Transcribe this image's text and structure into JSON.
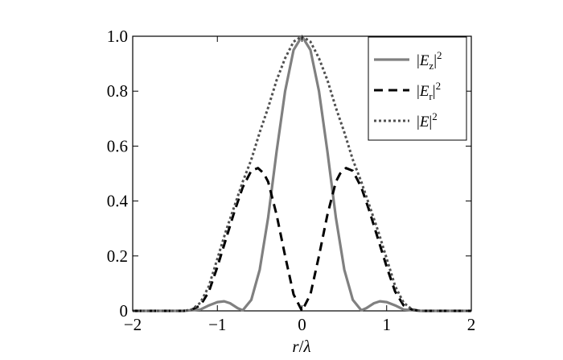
{
  "chart_data": {
    "type": "line",
    "title": "",
    "xlabel_parts": {
      "var": "r",
      "sep": "/",
      "sym": "λ"
    },
    "ylabel": "",
    "xlim": [
      -2,
      2
    ],
    "ylim": [
      0,
      1
    ],
    "x_ticks": [
      -2,
      -1,
      0,
      1,
      2
    ],
    "x_tick_labels": [
      "−2",
      "−1",
      "0",
      "1",
      "2"
    ],
    "y_ticks": [
      0,
      0.2,
      0.4,
      0.6,
      0.8,
      1.0
    ],
    "y_tick_labels": [
      "0",
      "0.2",
      "0.4",
      "0.6",
      "0.8",
      "1.0"
    ],
    "grid": false,
    "legend_position": "top-right",
    "series": [
      {
        "name": "|E_z|^2",
        "legend_parts": {
          "var": "E",
          "sub": "z",
          "sup": "2"
        },
        "style": "solid",
        "color": "#808080",
        "x": [
          -2.0,
          -1.4,
          -1.2,
          -1.1,
          -1.0,
          -0.92,
          -0.85,
          -0.76,
          -0.7,
          -0.6,
          -0.5,
          -0.4,
          -0.3,
          -0.2,
          -0.1,
          0.0,
          0.1,
          0.2,
          0.3,
          0.4,
          0.5,
          0.6,
          0.7,
          0.76,
          0.85,
          0.92,
          1.0,
          1.1,
          1.2,
          1.4,
          2.0
        ],
        "y": [
          0.0,
          0.0,
          0.005,
          0.02,
          0.032,
          0.035,
          0.028,
          0.01,
          0.002,
          0.04,
          0.15,
          0.34,
          0.58,
          0.8,
          0.95,
          1.0,
          0.95,
          0.8,
          0.58,
          0.34,
          0.15,
          0.04,
          0.002,
          0.01,
          0.028,
          0.035,
          0.032,
          0.02,
          0.005,
          0.0,
          0.0
        ]
      },
      {
        "name": "|E_r|^2",
        "legend_parts": {
          "var": "E",
          "sub": "r",
          "sup": "2"
        },
        "style": "dashed",
        "color": "#000000",
        "x": [
          -2.0,
          -1.4,
          -1.3,
          -1.2,
          -1.1,
          -1.0,
          -0.9,
          -0.8,
          -0.7,
          -0.6,
          -0.52,
          -0.45,
          -0.4,
          -0.3,
          -0.2,
          -0.1,
          0.0,
          0.1,
          0.2,
          0.3,
          0.4,
          0.45,
          0.52,
          0.6,
          0.7,
          0.8,
          0.9,
          1.0,
          1.1,
          1.2,
          1.3,
          1.4,
          2.0
        ],
        "y": [
          0.0,
          0.0,
          0.005,
          0.02,
          0.07,
          0.16,
          0.26,
          0.36,
          0.45,
          0.51,
          0.52,
          0.5,
          0.47,
          0.35,
          0.2,
          0.06,
          0.0,
          0.06,
          0.2,
          0.35,
          0.47,
          0.5,
          0.52,
          0.51,
          0.45,
          0.36,
          0.26,
          0.16,
          0.07,
          0.02,
          0.005,
          0.0,
          0.0
        ]
      },
      {
        "name": "|E|^2",
        "legend_parts": {
          "var": "E",
          "sub": "",
          "sup": "2"
        },
        "style": "dotted",
        "color": "#505050",
        "x": [
          -2.0,
          -1.4,
          -1.3,
          -1.2,
          -1.1,
          -1.0,
          -0.9,
          -0.8,
          -0.7,
          -0.6,
          -0.5,
          -0.4,
          -0.3,
          -0.2,
          -0.1,
          0.0,
          0.1,
          0.2,
          0.3,
          0.4,
          0.5,
          0.6,
          0.7,
          0.8,
          0.9,
          1.0,
          1.1,
          1.2,
          1.3,
          1.4,
          2.0
        ],
        "y": [
          0.0,
          0.0,
          0.005,
          0.03,
          0.09,
          0.19,
          0.29,
          0.38,
          0.47,
          0.55,
          0.65,
          0.74,
          0.84,
          0.92,
          0.98,
          1.0,
          0.98,
          0.92,
          0.84,
          0.74,
          0.65,
          0.55,
          0.47,
          0.38,
          0.29,
          0.19,
          0.09,
          0.03,
          0.005,
          0.0,
          0.0
        ]
      }
    ]
  }
}
